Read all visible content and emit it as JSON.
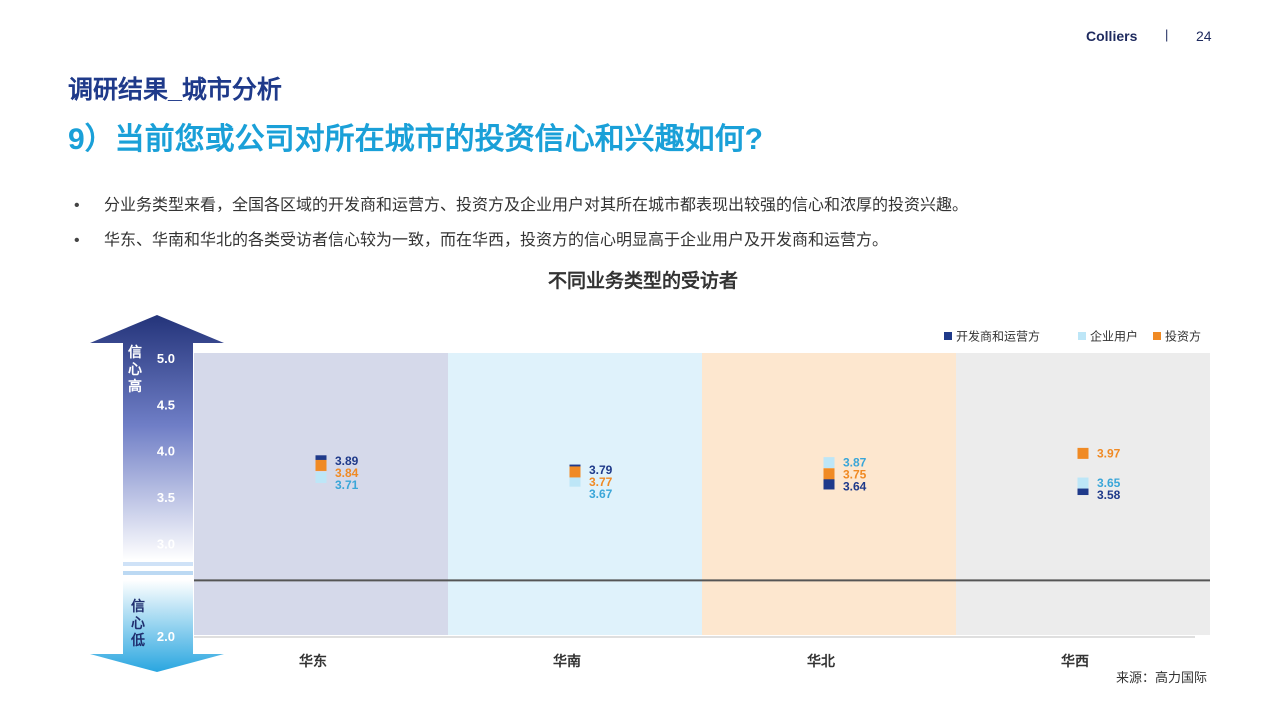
{
  "header": {
    "brand": "Colliers",
    "separator": "|",
    "page_number": "24"
  },
  "section_title": "调研结果_城市分析",
  "main_title": "9）当前您或公司对所在城市的投资信心和兴趣如何?",
  "bullets": [
    "分业务类型来看，全国各区域的开发商和运营方、投资方及企业用户对其所在城市都表现出较强的信心和浓厚的投资兴趣。",
    "华东、华南和华北的各类受访者信心较为一致，而在华西，投资方的信心明显高于企业用户及开发商和运营方。"
  ],
  "bullet_marker": "•",
  "arrow": {
    "top_label": [
      "信",
      "心",
      "高"
    ],
    "bottom_label": [
      "信",
      "心",
      "低"
    ]
  },
  "source": "来源：高力国际",
  "chart_data": {
    "type": "scatter",
    "title": "不同业务类型的受访者",
    "categories": [
      "华东",
      "华南",
      "华北",
      "华西"
    ],
    "category_colors": [
      "#d5d9ea",
      "#dff2fb",
      "#fde7cf",
      "#ececec"
    ],
    "yticks": [
      2.0,
      2.5,
      3.0,
      3.5,
      4.0,
      4.5,
      5.0
    ],
    "ytick_labels": [
      "2.0",
      "",
      "3.0",
      "3.5",
      "4.0",
      "4.5",
      "5.0"
    ],
    "ylim": [
      2.0,
      5.0
    ],
    "reference_line": 2.6,
    "legend_position": "top-right",
    "series": [
      {
        "name": "开发商和运营方",
        "color": "#1f3a8a",
        "label_color": "#1f3a8a",
        "values": [
          3.89,
          3.79,
          3.64,
          3.58
        ],
        "labels": [
          "3.89",
          "3.79",
          "3.64",
          "3.58"
        ]
      },
      {
        "name": "企业用户",
        "color": "#bde6f7",
        "label_color": "#3aa6d8",
        "values": [
          3.71,
          3.67,
          3.87,
          3.65
        ],
        "labels": [
          "3.71",
          "3.67",
          "3.87",
          "3.65"
        ]
      },
      {
        "name": "投资方",
        "color": "#f08a24",
        "label_color": "#f08a24",
        "values": [
          3.84,
          3.77,
          3.75,
          3.97
        ],
        "labels": [
          "3.84",
          "3.77",
          "3.75",
          "3.97"
        ]
      }
    ]
  }
}
